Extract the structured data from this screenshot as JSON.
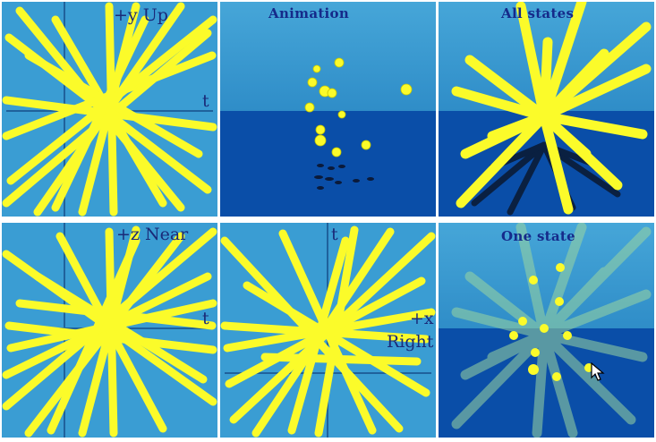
{
  "panels": {
    "xy": {
      "axis_y_label": "+y Up",
      "axis_t_label": "t"
    },
    "anim": {
      "title": "Animation"
    },
    "all": {
      "title": "All states"
    },
    "zt": {
      "axis_z_label": "+z Near",
      "axis_t_label": "t"
    },
    "tx": {
      "axis_t_label": "t",
      "axis_x_label": "+x",
      "axis_x_word": "Right"
    },
    "one": {
      "title": "One state"
    }
  },
  "icons": {
    "cursor": "mouse-pointer-icon"
  },
  "colors": {
    "sky_top": "#46a6d8",
    "sky_bottom": "#2f8dc8",
    "sea": "#0a4ea8",
    "rod": "#fbfb2a",
    "rod_faded": "#9bd6a0",
    "axis": "#1b4f8a",
    "label": "#1a2a78"
  }
}
